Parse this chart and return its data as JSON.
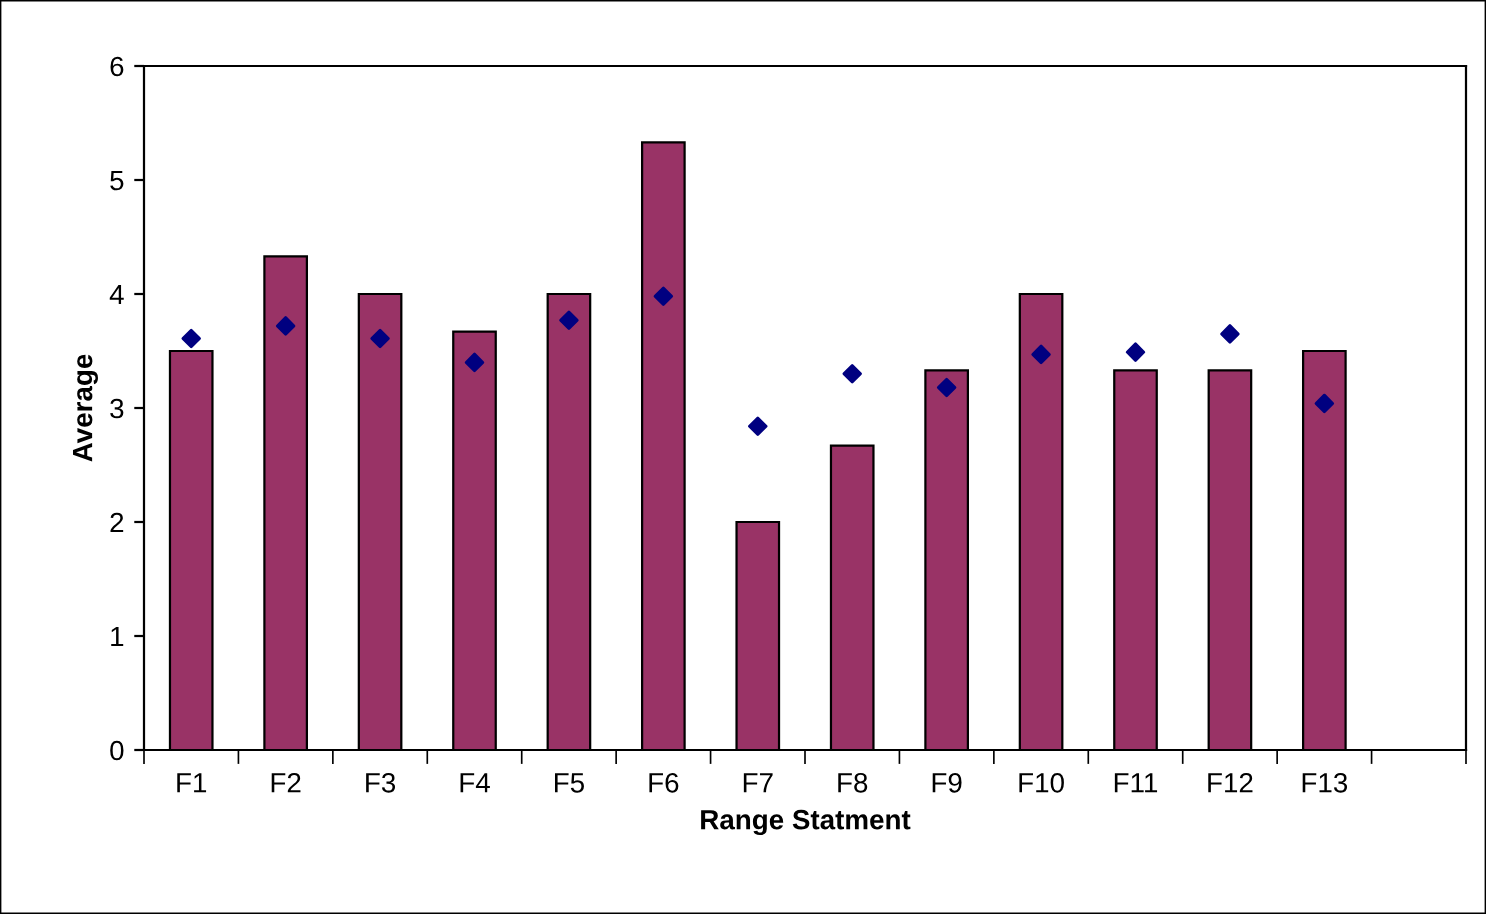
{
  "chart_data": {
    "type": "bar",
    "xlabel": "Range Statment",
    "ylabel": "Average",
    "categories": [
      "F1",
      "F2",
      "F3",
      "F4",
      "F5",
      "F6",
      "F7",
      "F8",
      "F9",
      "F10",
      "F11",
      "F12",
      "F13",
      null
    ],
    "series": [
      {
        "color": "#993366",
        "values": [
          3.5,
          4.33,
          4.0,
          3.67,
          4.0,
          5.33,
          2.0,
          2.67,
          3.33,
          4.0,
          3.33,
          3.33,
          3.5,
          null
        ]
      },
      {
        "type": "scatter",
        "color": "#000080",
        "marker": "diamond",
        "values": [
          3.61,
          3.72,
          3.61,
          3.4,
          3.77,
          3.98,
          2.84,
          3.3,
          3.18,
          3.47,
          3.49,
          3.65,
          3.04,
          null
        ]
      }
    ],
    "ylim": [
      0,
      6
    ],
    "yticks": [
      0,
      1,
      2,
      3,
      4,
      5,
      6
    ],
    "grid": false,
    "legend": false
  }
}
